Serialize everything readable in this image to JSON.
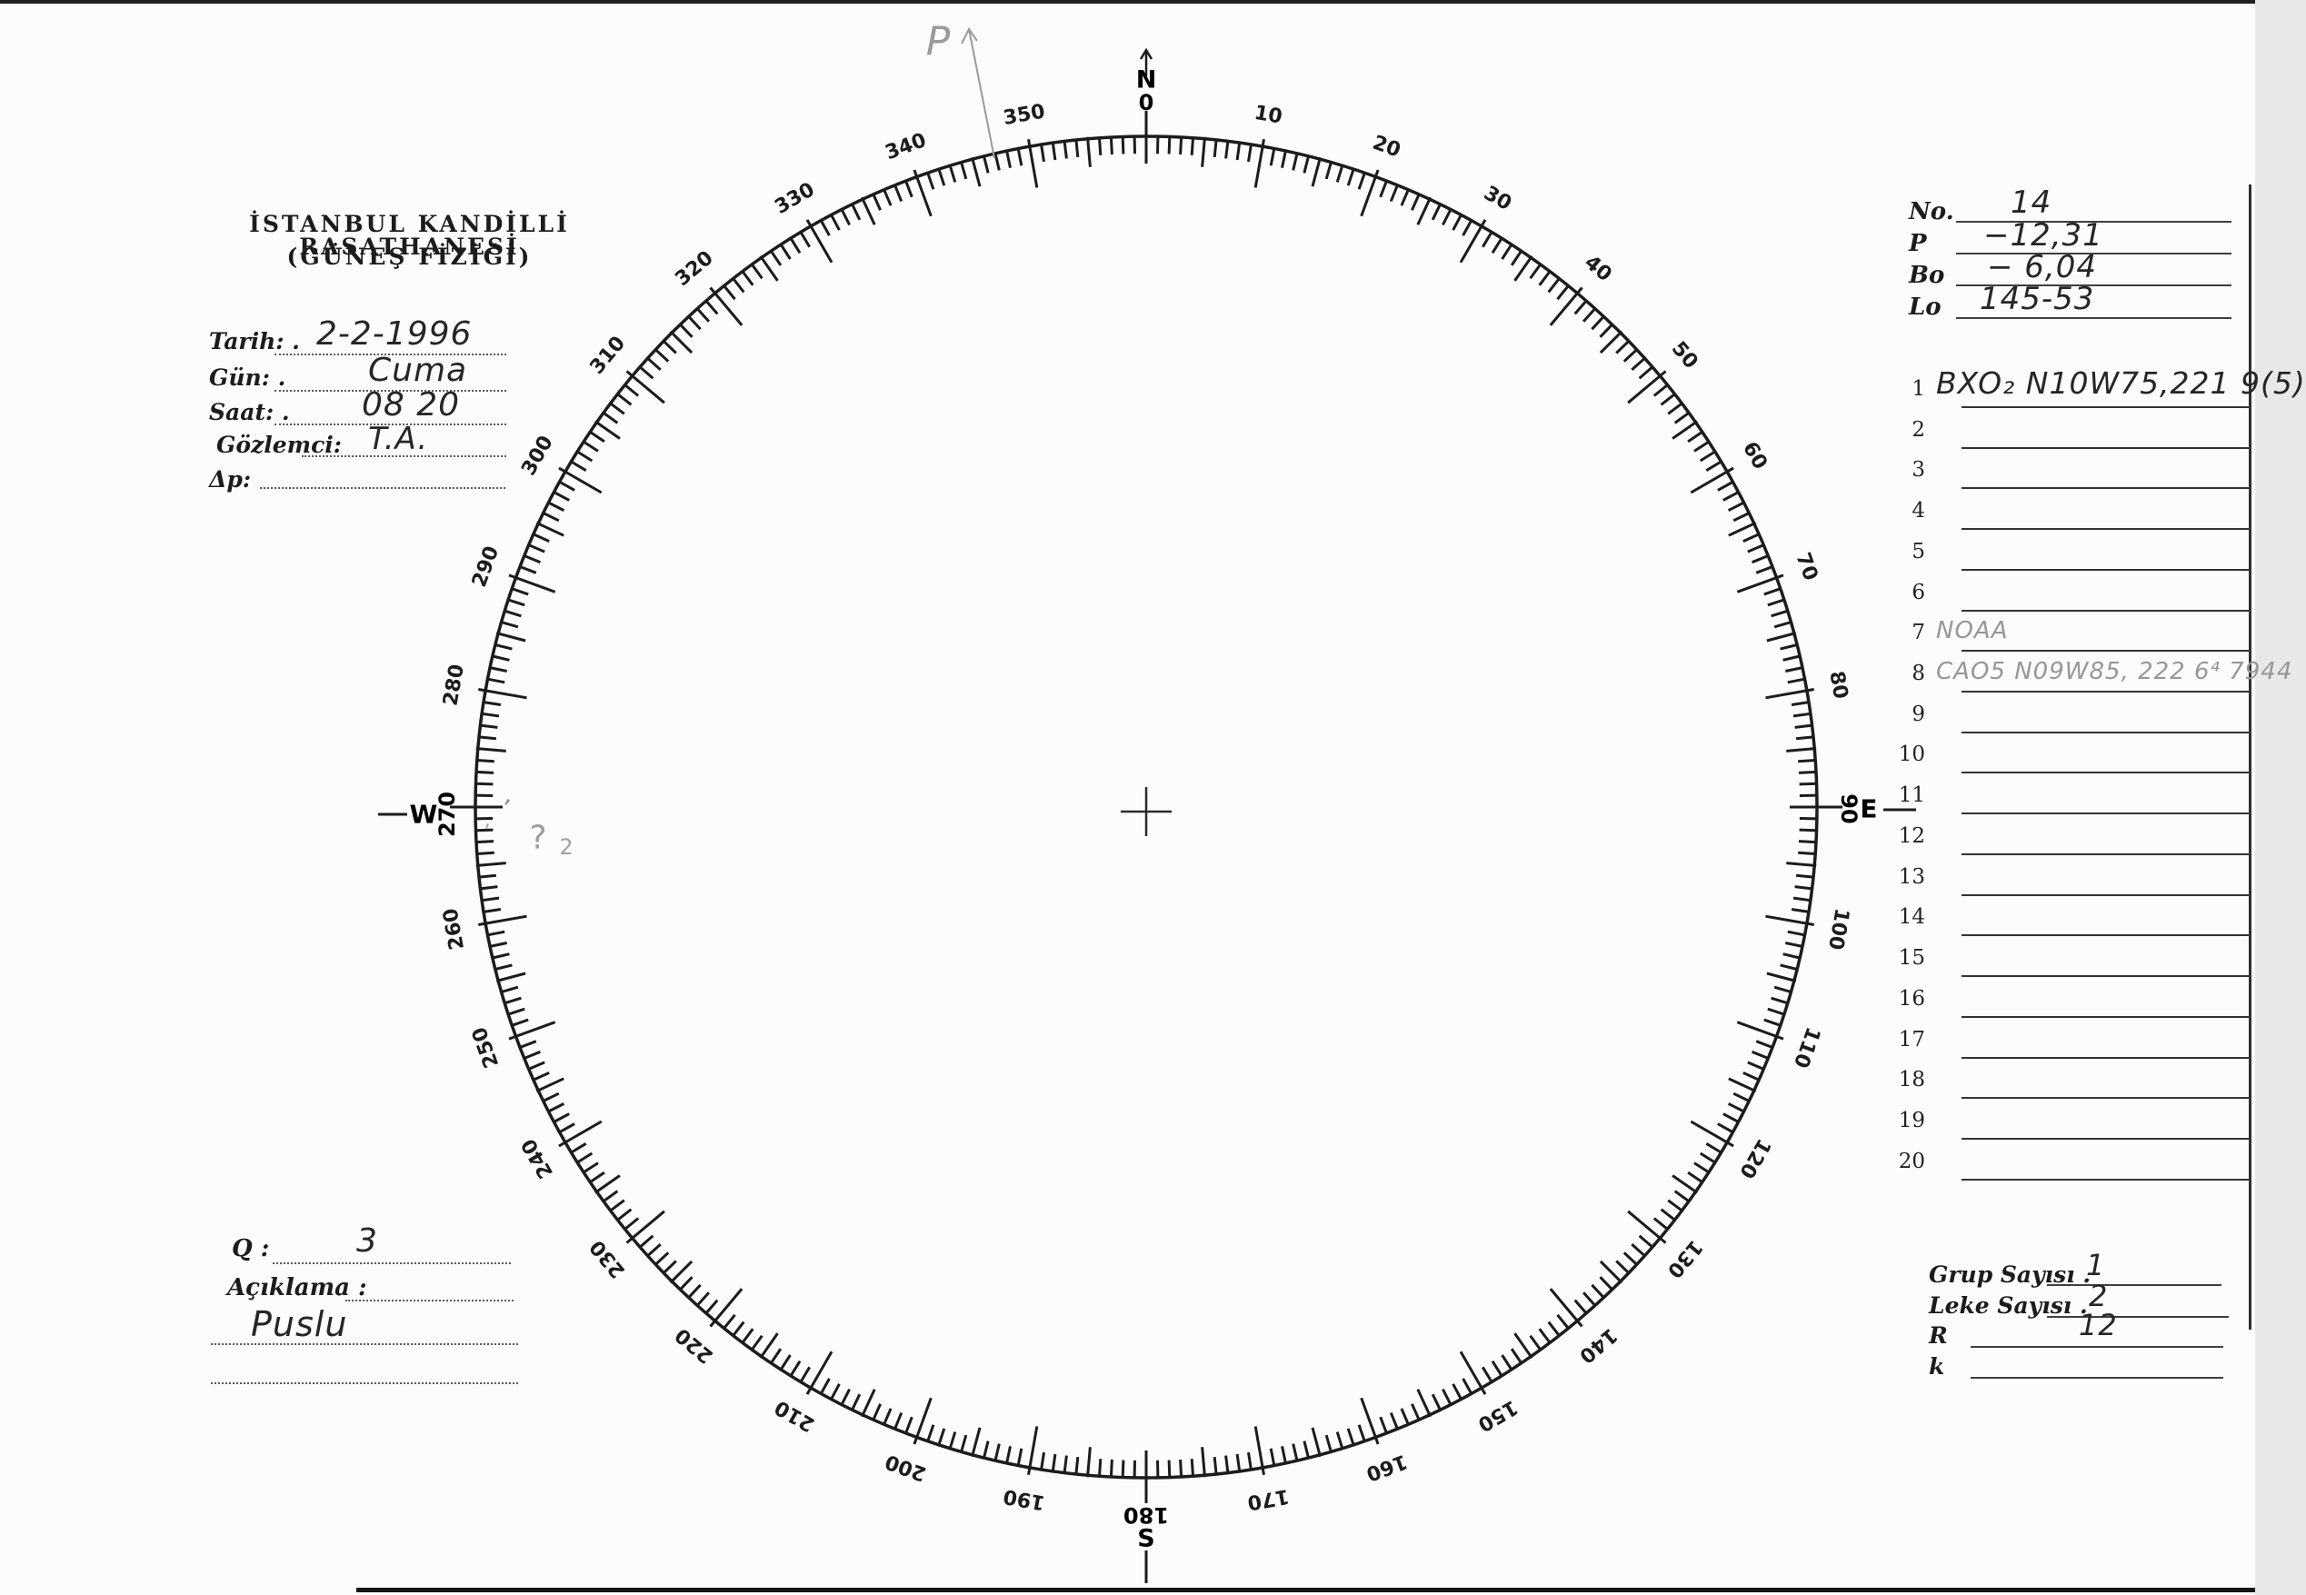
{
  "colors": {
    "ink": "#262626",
    "pencil": "#979797",
    "print": "#1c1c1c",
    "paper": "#fcfcfa"
  },
  "header": {
    "line1": "İSTANBUL KANDİLLİ RASATHANESİ",
    "line2": "(GÜNEŞ FİZİĞİ)"
  },
  "observation": {
    "tarih_label": "Tarih: .",
    "tarih_value": "2-2-1996",
    "gun_label": "Gün: .",
    "gun_value": "Cuma",
    "saat_label": "Saat: .",
    "saat_value": "08 20",
    "gozlemci_label": "Gözlemci:",
    "gozlemci_value": "T.A.",
    "dp_label": "Δp:",
    "dp_value": ""
  },
  "solar_params": {
    "no_label": "No.",
    "no_value": "14",
    "p_label": "P",
    "p_value": "−12,31",
    "bo_label": "Bo",
    "bo_value": "− 6,04",
    "lo_label": "Lo",
    "lo_value": "145-53"
  },
  "group_list": {
    "rows": [
      {
        "num": "1",
        "text": "BXO₂ N10W75,221  9(5)",
        "style": "ink"
      },
      {
        "num": "2",
        "text": "",
        "style": ""
      },
      {
        "num": "3",
        "text": "",
        "style": ""
      },
      {
        "num": "4",
        "text": "",
        "style": ""
      },
      {
        "num": "5",
        "text": "",
        "style": ""
      },
      {
        "num": "6",
        "text": "",
        "style": ""
      },
      {
        "num": "7",
        "text": "NOAA",
        "style": "pencil"
      },
      {
        "num": "8",
        "text": "CAO5 N09W85, 222  6⁴  7944",
        "style": "pencil"
      },
      {
        "num": "9",
        "text": "",
        "style": ""
      },
      {
        "num": "10",
        "text": "",
        "style": ""
      },
      {
        "num": "11",
        "text": "",
        "style": ""
      },
      {
        "num": "12",
        "text": "",
        "style": ""
      },
      {
        "num": "13",
        "text": "",
        "style": ""
      },
      {
        "num": "14",
        "text": "",
        "style": ""
      },
      {
        "num": "15",
        "text": "",
        "style": ""
      },
      {
        "num": "16",
        "text": "",
        "style": ""
      },
      {
        "num": "17",
        "text": "",
        "style": ""
      },
      {
        "num": "18",
        "text": "",
        "style": ""
      },
      {
        "num": "19",
        "text": "",
        "style": ""
      },
      {
        "num": "20",
        "text": "",
        "style": ""
      }
    ]
  },
  "summary": {
    "grup_label": "Grup Sayısı .",
    "grup_value": "1",
    "leke_label": "Leke Sayısı .",
    "leke_value": "2",
    "r_label": "R",
    "r_value": "12",
    "k_label": "k",
    "k_value": ""
  },
  "quality": {
    "q_label": "Q :",
    "q_value": "3",
    "aciklama_label": "Açıklama :",
    "aciklama_value": "Puslu"
  },
  "dial": {
    "cardinals": {
      "n": "N",
      "n_deg": "0",
      "e": "E",
      "e_deg": "90",
      "s": "S",
      "s_deg": "180",
      "w": "W",
      "w_deg": "270"
    },
    "degree_labels": [
      {
        "a": 10,
        "t": "10"
      },
      {
        "a": 20,
        "t": "20"
      },
      {
        "a": 30,
        "t": "30"
      },
      {
        "a": 40,
        "t": "40"
      },
      {
        "a": 50,
        "t": "50"
      },
      {
        "a": 60,
        "t": "60"
      },
      {
        "a": 70,
        "t": "70"
      },
      {
        "a": 80,
        "t": "80"
      },
      {
        "a": 100,
        "t": "100"
      },
      {
        "a": 110,
        "t": "110"
      },
      {
        "a": 120,
        "t": "120"
      },
      {
        "a": 130,
        "t": "130"
      },
      {
        "a": 140,
        "t": "140"
      },
      {
        "a": 150,
        "t": "150"
      },
      {
        "a": 160,
        "t": "160"
      },
      {
        "a": 170,
        "t": "170"
      },
      {
        "a": 190,
        "t": "190"
      },
      {
        "a": 200,
        "t": "200"
      },
      {
        "a": 210,
        "t": "210"
      },
      {
        "a": 220,
        "t": "220"
      },
      {
        "a": 230,
        "t": "230"
      },
      {
        "a": 240,
        "t": "240"
      },
      {
        "a": 250,
        "t": "250"
      },
      {
        "a": 260,
        "t": "260"
      },
      {
        "a": 280,
        "t": "280"
      },
      {
        "a": 290,
        "t": "290"
      },
      {
        "a": 300,
        "t": "300"
      },
      {
        "a": 310,
        "t": "310"
      },
      {
        "a": 320,
        "t": "320"
      },
      {
        "a": 330,
        "t": "330"
      },
      {
        "a": 340,
        "t": "340"
      },
      {
        "a": 350,
        "t": "350"
      }
    ],
    "p_arrow_label": "P",
    "pencil_marks": {
      "mark1": "’",
      "mark2": "ʼ",
      "question": "?",
      "two": "2"
    }
  }
}
